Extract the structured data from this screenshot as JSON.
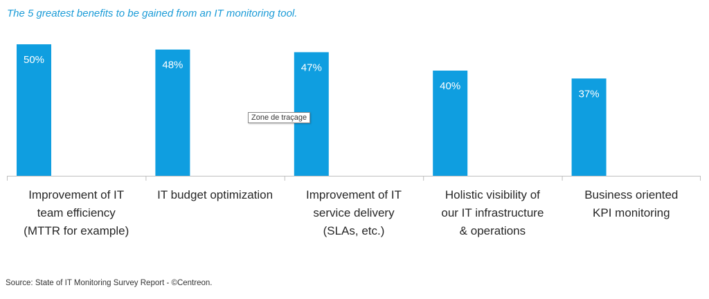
{
  "chart_data": {
    "type": "bar",
    "title": "The 5 greatest benefits to be gained from an IT monitoring tool.",
    "categories": [
      "Improvement of IT team efficiency (MTTR for example)",
      "IT budget optimization",
      "Improvement of IT service delivery (SLAs, etc.)",
      "Holistic visibility of our IT infrastructure & operations",
      "Business oriented KPI monitoring"
    ],
    "category_lines": [
      [
        "Improvement of IT",
        "team efficiency",
        "(MTTR for example)"
      ],
      [
        "IT budget optimization"
      ],
      [
        "Improvement of IT",
        "service delivery",
        "(SLAs, etc.)"
      ],
      [
        "Holistic visibility of",
        "our IT infrastructure",
        "& operations"
      ],
      [
        "Business oriented",
        "KPI monitoring"
      ]
    ],
    "values": [
      50,
      48,
      47,
      40,
      37
    ],
    "data_labels": [
      "50%",
      "48%",
      "47%",
      "40%",
      "37%"
    ],
    "unit": "%",
    "ylim": [
      0,
      50
    ],
    "grid": false,
    "legend": "none",
    "bar_color": "#0f9ee0",
    "title_color": "#1a9bd7"
  },
  "tooltip": {
    "text": "Zone de traçage"
  },
  "footer": {
    "source": "Source: State of IT Monitoring Survey Report - ©Centreon."
  }
}
